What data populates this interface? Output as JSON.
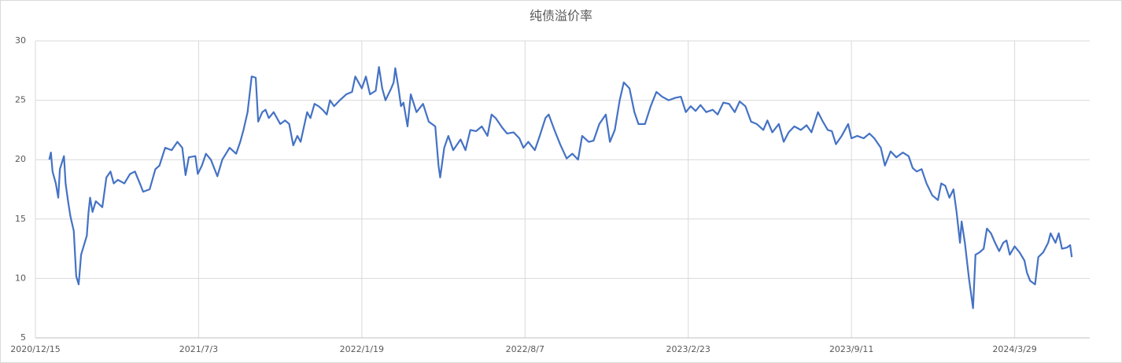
{
  "chart_data": {
    "type": "line",
    "title": "纯债溢价率",
    "color": "#4472c4",
    "grid": true,
    "xlim": [
      "2020/12/15",
      "2024/6/29"
    ],
    "xticks": [
      "2020/12/15",
      "2021/7/3",
      "2022/1/19",
      "2022/8/7",
      "2023/2/23",
      "2023/9/11",
      "2024/3/29"
    ],
    "ylim": [
      5,
      30
    ],
    "yticks": [
      5,
      10,
      15,
      20,
      25,
      30
    ],
    "x": [
      "2021/1/1",
      "2021/1/3",
      "2021/1/5",
      "2021/1/9",
      "2021/1/12",
      "2021/1/14",
      "2021/1/19",
      "2021/1/21",
      "2021/1/24",
      "2021/1/27",
      "2021/1/31",
      "2021/2/3",
      "2021/2/6",
      "2021/2/9",
      "2021/2/16",
      "2021/2/18",
      "2021/2/20",
      "2021/2/23",
      "2021/2/27",
      "2021/3/7",
      "2021/3/12",
      "2021/3/17",
      "2021/3/21",
      "2021/3/26",
      "2021/4/3",
      "2021/4/10",
      "2021/4/16",
      "2021/4/22",
      "2021/4/26",
      "2021/5/4",
      "2021/5/11",
      "2021/5/16",
      "2021/5/23",
      "2021/5/31",
      "2021/6/7",
      "2021/6/13",
      "2021/6/17",
      "2021/6/21",
      "2021/6/29",
      "2021/7/2",
      "2021/7/7",
      "2021/7/12",
      "2021/7/18",
      "2021/7/26",
      "2021/8/1",
      "2021/8/10",
      "2021/8/18",
      "2021/8/23",
      "2021/8/27",
      "2021/9/1",
      "2021/9/6",
      "2021/9/11",
      "2021/9/14",
      "2021/9/19",
      "2021/9/23",
      "2021/9/27",
      "2021/10/3",
      "2021/10/11",
      "2021/10/17",
      "2021/10/22",
      "2021/10/27",
      "2021/11/1",
      "2021/11/5",
      "2021/11/13",
      "2021/11/17",
      "2021/11/22",
      "2021/11/27",
      "2021/12/2",
      "2021/12/7",
      "2021/12/11",
      "2021/12/16",
      "2021/12/23",
      "2021/12/31",
      "2022/1/7",
      "2022/1/11",
      "2022/1/15",
      "2022/1/19",
      "2022/1/24",
      "2022/1/29",
      "2022/2/5",
      "2022/2/9",
      "2022/2/13",
      "2022/2/17",
      "2022/2/24",
      "2022/2/27",
      "2022/3/1",
      "2022/3/5",
      "2022/3/8",
      "2022/3/11",
      "2022/3/16",
      "2022/3/20",
      "2022/3/27",
      "2022/4/4",
      "2022/4/11",
      "2022/4/19",
      "2022/4/23",
      "2022/4/25",
      "2022/4/30",
      "2022/5/5",
      "2022/5/11",
      "2022/5/20",
      "2022/5/26",
      "2022/6/1",
      "2022/6/8",
      "2022/6/15",
      "2022/6/22",
      "2022/6/27",
      "2022/7/2",
      "2022/7/10",
      "2022/7/16",
      "2022/7/24",
      "2022/7/31",
      "2022/8/5",
      "2022/8/11",
      "2022/8/19",
      "2022/8/25",
      "2022/9/1",
      "2022/9/5",
      "2022/9/12",
      "2022/9/19",
      "2022/9/27",
      "2022/10/4",
      "2022/10/11",
      "2022/10/16",
      "2022/10/24",
      "2022/10/30",
      "2022/11/6",
      "2022/11/14",
      "2022/11/19",
      "2022/11/25",
      "2022/12/1",
      "2022/12/6",
      "2022/12/13",
      "2022/12/19",
      "2022/12/24",
      "2023/1/1",
      "2023/1/8",
      "2023/1/15",
      "2023/1/22",
      "2023/1/30",
      "2023/2/7",
      "2023/2/14",
      "2023/2/20",
      "2023/2/26",
      "2023/3/4",
      "2023/3/10",
      "2023/3/17",
      "2023/3/25",
      "2023/3/31",
      "2023/4/7",
      "2023/4/14",
      "2023/4/21",
      "2023/4/27",
      "2023/5/4",
      "2023/5/11",
      "2023/5/18",
      "2023/5/26",
      "2023/5/31",
      "2023/6/6",
      "2023/6/14",
      "2023/6/20",
      "2023/6/26",
      "2023/7/3",
      "2023/7/11",
      "2023/7/18",
      "2023/7/24",
      "2023/8/1",
      "2023/8/7",
      "2023/8/13",
      "2023/8/18",
      "2023/8/23",
      "2023/8/30",
      "2023/9/7",
      "2023/9/11",
      "2023/9/18",
      "2023/9/26",
      "2023/10/3",
      "2023/10/9",
      "2023/10/17",
      "2023/10/22",
      "2023/10/29",
      "2023/11/5",
      "2023/11/13",
      "2023/11/20",
      "2023/11/25",
      "2023/11/30",
      "2023/12/6",
      "2023/12/12",
      "2023/12/19",
      "2023/12/26",
      "2023/12/30",
      "2024/1/4",
      "2024/1/9",
      "2024/1/14",
      "2024/1/18",
      "2024/1/22",
      "2024/1/24",
      "2024/1/28",
      "2024/2/2",
      "2024/2/7",
      "2024/2/10",
      "2024/2/15",
      "2024/2/20",
      "2024/2/24",
      "2024/2/29",
      "2024/3/5",
      "2024/3/10",
      "2024/3/15",
      "2024/3/19",
      "2024/3/23",
      "2024/3/29",
      "2024/4/4",
      "2024/4/10",
      "2024/4/13",
      "2024/4/17",
      "2024/4/23",
      "2024/4/27",
      "2024/5/3",
      "2024/5/9",
      "2024/5/12",
      "2024/5/18",
      "2024/5/22",
      "2024/5/26",
      "2024/6/1",
      "2024/6/5",
      "2024/6/7"
    ],
    "values": [
      20,
      20.6,
      19,
      18,
      16.8,
      19.2,
      20.3,
      18,
      16.5,
      15.2,
      14,
      10.2,
      9.5,
      12,
      13.6,
      15.5,
      16.8,
      15.6,
      16.5,
      16,
      18.5,
      19,
      18,
      18.3,
      18,
      18.8,
      19,
      18,
      17.3,
      17.5,
      19.2,
      19.5,
      21,
      20.8,
      21.5,
      21,
      18.7,
      20.2,
      20.3,
      18.8,
      19.5,
      20.5,
      20,
      18.6,
      20,
      21,
      20.5,
      21.5,
      22.5,
      24,
      27,
      26.9,
      23.2,
      24,
      24.2,
      23.5,
      24,
      23,
      23.3,
      23,
      21.2,
      22,
      21.5,
      24,
      23.5,
      24.7,
      24.5,
      24.2,
      23.8,
      25,
      24.5,
      25,
      25.5,
      25.7,
      27,
      26.5,
      26,
      27,
      25.5,
      25.8,
      27.8,
      26,
      25,
      26,
      26.5,
      27.7,
      26,
      24.5,
      24.8,
      22.8,
      25.5,
      24,
      24.7,
      23.2,
      22.8,
      19.5,
      18.5,
      21,
      22,
      20.8,
      21.7,
      20.8,
      22.5,
      22.4,
      22.8,
      22,
      23.8,
      23.5,
      22.7,
      22.2,
      22.3,
      21.8,
      21,
      21.5,
      20.8,
      22,
      23.5,
      23.8,
      22.5,
      21.3,
      20.1,
      20.5,
      20,
      22,
      21.5,
      21.6,
      23,
      23.8,
      21.5,
      22.5,
      25,
      26.5,
      26,
      24,
      23,
      23,
      24.5,
      25.7,
      25.3,
      25,
      25.2,
      25.3,
      24,
      24.5,
      24.1,
      24.6,
      24,
      24.2,
      23.8,
      24.8,
      24.7,
      24,
      24.9,
      24.5,
      23.2,
      23,
      22.5,
      23.3,
      22.3,
      23,
      21.5,
      22.3,
      22.8,
      22.5,
      22.9,
      22.3,
      24,
      23.2,
      22.5,
      22.4,
      21.3,
      22,
      23,
      21.8,
      22,
      21.8,
      22.2,
      21.8,
      21,
      19.5,
      20.7,
      20.2,
      20.6,
      20.3,
      19.3,
      19,
      19.2,
      18,
      17,
      16.6,
      18,
      17.8,
      16.8,
      17.5,
      15.5,
      13,
      14.8,
      13,
      10,
      7.5,
      12,
      12.2,
      12.5,
      14.2,
      13.8,
      13,
      12.3,
      13,
      13.2,
      12,
      12.7,
      12.2,
      11.5,
      10.5,
      9.8,
      9.5,
      11.8,
      12.2,
      13,
      13.8,
      13,
      13.8,
      12.5,
      12.6,
      12.8,
      11.8
    ]
  }
}
